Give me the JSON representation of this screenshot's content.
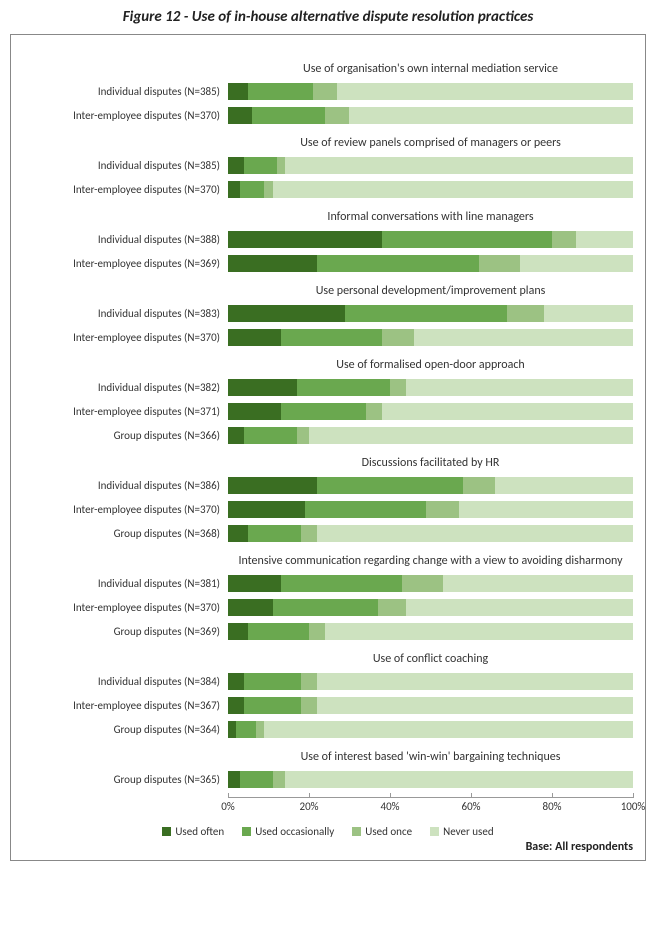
{
  "figure_title": "Figure 12 - Use of in-house alternative dispute resolution practices",
  "base_note": "Base: All respondents",
  "chart": {
    "type": "stacked-bar-horizontal",
    "x_axis": {
      "min": 0,
      "max": 100,
      "tick_step": 20,
      "tick_labels": [
        "0%",
        "20%",
        "40%",
        "60%",
        "80%",
        "100%"
      ]
    },
    "grid_color": "#e6e6e6",
    "axis_color": "#999999",
    "label_fontsize": 11,
    "title_fontsize": 12,
    "legend": [
      {
        "label": "Used often",
        "color": "#3a6e22"
      },
      {
        "label": "Used occasionally",
        "color": "#6aa84f"
      },
      {
        "label": "Used once",
        "color": "#9cc283"
      },
      {
        "label": "Never used",
        "color": "#cde2bf"
      }
    ],
    "groups": [
      {
        "title": "Use of organisation's own internal mediation service",
        "rows": [
          {
            "label": "Individual disputes (N=385)",
            "values": [
              5,
              16,
              6,
              73
            ]
          },
          {
            "label": "Inter-employee disputes (N=370)",
            "values": [
              6,
              18,
              6,
              70
            ]
          }
        ]
      },
      {
        "title": "Use of review panels comprised of managers or peers",
        "rows": [
          {
            "label": "Individual disputes (N=385)",
            "values": [
              4,
              8,
              2,
              86
            ]
          },
          {
            "label": "Inter-employee disputes (N=370)",
            "values": [
              3,
              6,
              2,
              89
            ]
          }
        ]
      },
      {
        "title": "Informal conversations with line managers",
        "rows": [
          {
            "label": "Individual disputes (N=388)",
            "values": [
              38,
              42,
              6,
              14
            ]
          },
          {
            "label": "Inter-employee disputes (N=369)",
            "values": [
              22,
              40,
              10,
              28
            ]
          }
        ]
      },
      {
        "title": "Use personal development/improvement plans",
        "rows": [
          {
            "label": "Individual disputes (N=383)",
            "values": [
              29,
              40,
              9,
              22
            ]
          },
          {
            "label": "Inter-employee disputes (N=370)",
            "values": [
              13,
              25,
              8,
              54
            ]
          }
        ]
      },
      {
        "title": "Use of formalised open-door approach",
        "rows": [
          {
            "label": "Individual disputes (N=382)",
            "values": [
              17,
              23,
              4,
              56
            ]
          },
          {
            "label": "Inter-employee disputes (N=371)",
            "values": [
              13,
              21,
              4,
              62
            ]
          },
          {
            "label": "Group disputes (N=366)",
            "values": [
              4,
              13,
              3,
              80
            ]
          }
        ]
      },
      {
        "title": "Discussions facilitated by HR",
        "rows": [
          {
            "label": "Individual disputes (N=386)",
            "values": [
              22,
              36,
              8,
              34
            ]
          },
          {
            "label": "Inter-employee disputes (N=370)",
            "values": [
              19,
              30,
              8,
              43
            ]
          },
          {
            "label": "Group disputes (N=368)",
            "values": [
              5,
              13,
              4,
              78
            ]
          }
        ]
      },
      {
        "title": "Intensive communication regarding change with a view to avoiding disharmony",
        "rows": [
          {
            "label": "Individual disputes (N=381)",
            "values": [
              13,
              30,
              10,
              47
            ]
          },
          {
            "label": "Inter-employee disputes (N=370)",
            "values": [
              11,
              26,
              7,
              56
            ]
          },
          {
            "label": "Group disputes (N=369)",
            "values": [
              5,
              15,
              4,
              76
            ]
          }
        ]
      },
      {
        "title": "Use of conflict coaching",
        "rows": [
          {
            "label": "Individual disputes (N=384)",
            "values": [
              4,
              14,
              4,
              78
            ]
          },
          {
            "label": "Inter-employee disputes (N=367)",
            "values": [
              4,
              14,
              4,
              78
            ]
          },
          {
            "label": "Group disputes (N=364)",
            "values": [
              2,
              5,
              2,
              91
            ]
          }
        ]
      },
      {
        "title": "Use of interest based 'win-win' bargaining techniques",
        "rows": [
          {
            "label": "Group disputes (N=365)",
            "values": [
              3,
              8,
              3,
              86
            ]
          }
        ]
      }
    ]
  }
}
